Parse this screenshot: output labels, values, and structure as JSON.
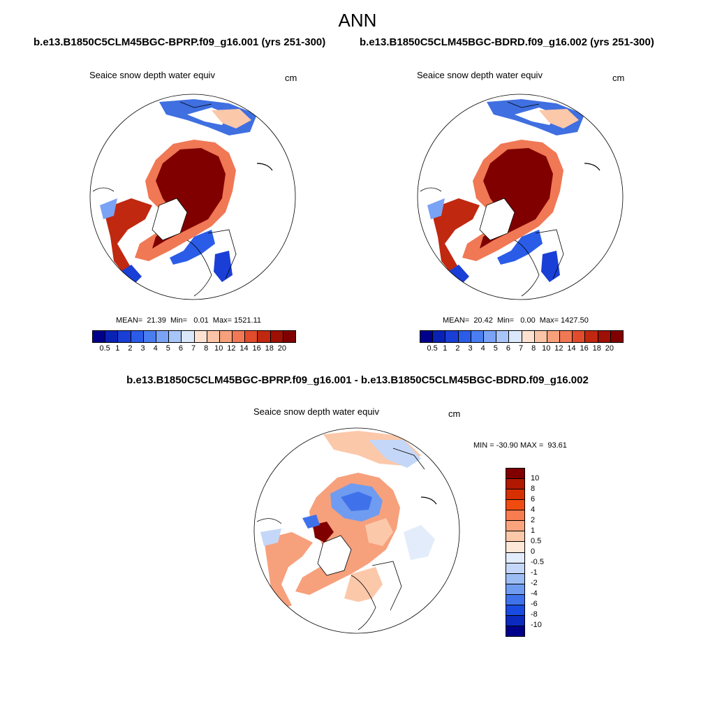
{
  "title": "ANN",
  "panels": [
    {
      "case": "b.e13.B1850C5CLM45BGC-BPRP.f09_g16.001 (yrs 251-300)",
      "variable": "Seaice snow depth water equiv",
      "units": "cm",
      "stats": "MEAN=  21.39  Min=   0.01  Max= 1521.11"
    },
    {
      "case": "b.e13.B1850C5CLM45BGC-BDRD.f09_g16.002 (yrs 251-300)",
      "variable": "Seaice snow depth water equiv",
      "units": "cm",
      "stats": "MEAN=  20.42  Min=   0.00  Max= 1427.50"
    }
  ],
  "difference": {
    "title": "b.e13.B1850C5CLM45BGC-BPRP.f09_g16.001 - b.e13.B1850C5CLM45BGC-BDRD.f09_g16.002",
    "variable": "Seaice snow depth water equiv",
    "units": "cm",
    "stats": "MIN = -30.90 MAX =  93.61"
  },
  "colorbar": {
    "labels": [
      "0.5",
      "1",
      "2",
      "3",
      "4",
      "5",
      "6",
      "7",
      "8",
      "10",
      "12",
      "14",
      "16",
      "18",
      "20"
    ],
    "colors": [
      "#00008b",
      "#0a22b4",
      "#1a3fd6",
      "#2a5ce8",
      "#4a7ef0",
      "#7aa2f5",
      "#a8c5f8",
      "#dbe8fb",
      "#fde2d2",
      "#fbc4a6",
      "#f7a07c",
      "#f07855",
      "#e14c2c",
      "#c02810",
      "#9e1004",
      "#800000"
    ]
  },
  "diff_colorbar": {
    "labels": [
      "10",
      "8",
      "6",
      "4",
      "2",
      "1",
      "0.5",
      "0",
      "-0.5",
      "-1",
      "-2",
      "-4",
      "-6",
      "-8",
      "-10"
    ],
    "colors": [
      "#800000",
      "#b01800",
      "#d63000",
      "#f04c10",
      "#f77c50",
      "#fba57e",
      "#fcc8aa",
      "#fde8d8",
      "#e3ecfa",
      "#c4d7f8",
      "#9cbcf4",
      "#6f9cf0",
      "#3f72ea",
      "#1a4be0",
      "#0a2ac0",
      "#00008b"
    ]
  },
  "chart_data": {
    "type": "heatmap",
    "title": "ANN",
    "maps": [
      {
        "name": "b.e13.B1850C5CLM45BGC-BPRP.f09_g16.001 (yrs 251-300)",
        "variable": "Seaice snow depth water equiv",
        "units": "cm",
        "mean": 21.39,
        "min": 0.01,
        "max": 1521.11,
        "levels": [
          0.5,
          1,
          2,
          3,
          4,
          5,
          6,
          7,
          8,
          10,
          12,
          14,
          16,
          18,
          20
        ]
      },
      {
        "name": "b.e13.B1850C5CLM45BGC-BDRD.f09_g16.002 (yrs 251-300)",
        "variable": "Seaice snow depth water equiv",
        "units": "cm",
        "mean": 20.42,
        "min": 0.0,
        "max": 1427.5,
        "levels": [
          0.5,
          1,
          2,
          3,
          4,
          5,
          6,
          7,
          8,
          10,
          12,
          14,
          16,
          18,
          20
        ]
      },
      {
        "name": "b.e13.B1850C5CLM45BGC-BPRP.f09_g16.001 - b.e13.B1850C5CLM45BGC-BDRD.f09_g16.002",
        "variable": "Seaice snow depth water equiv",
        "units": "cm",
        "min": -30.9,
        "max": 93.61,
        "levels": [
          -10,
          -8,
          -6,
          -4,
          -2,
          -1,
          -0.5,
          0,
          0.5,
          1,
          2,
          4,
          6,
          8,
          10
        ]
      }
    ],
    "projection": "north polar stereographic"
  }
}
